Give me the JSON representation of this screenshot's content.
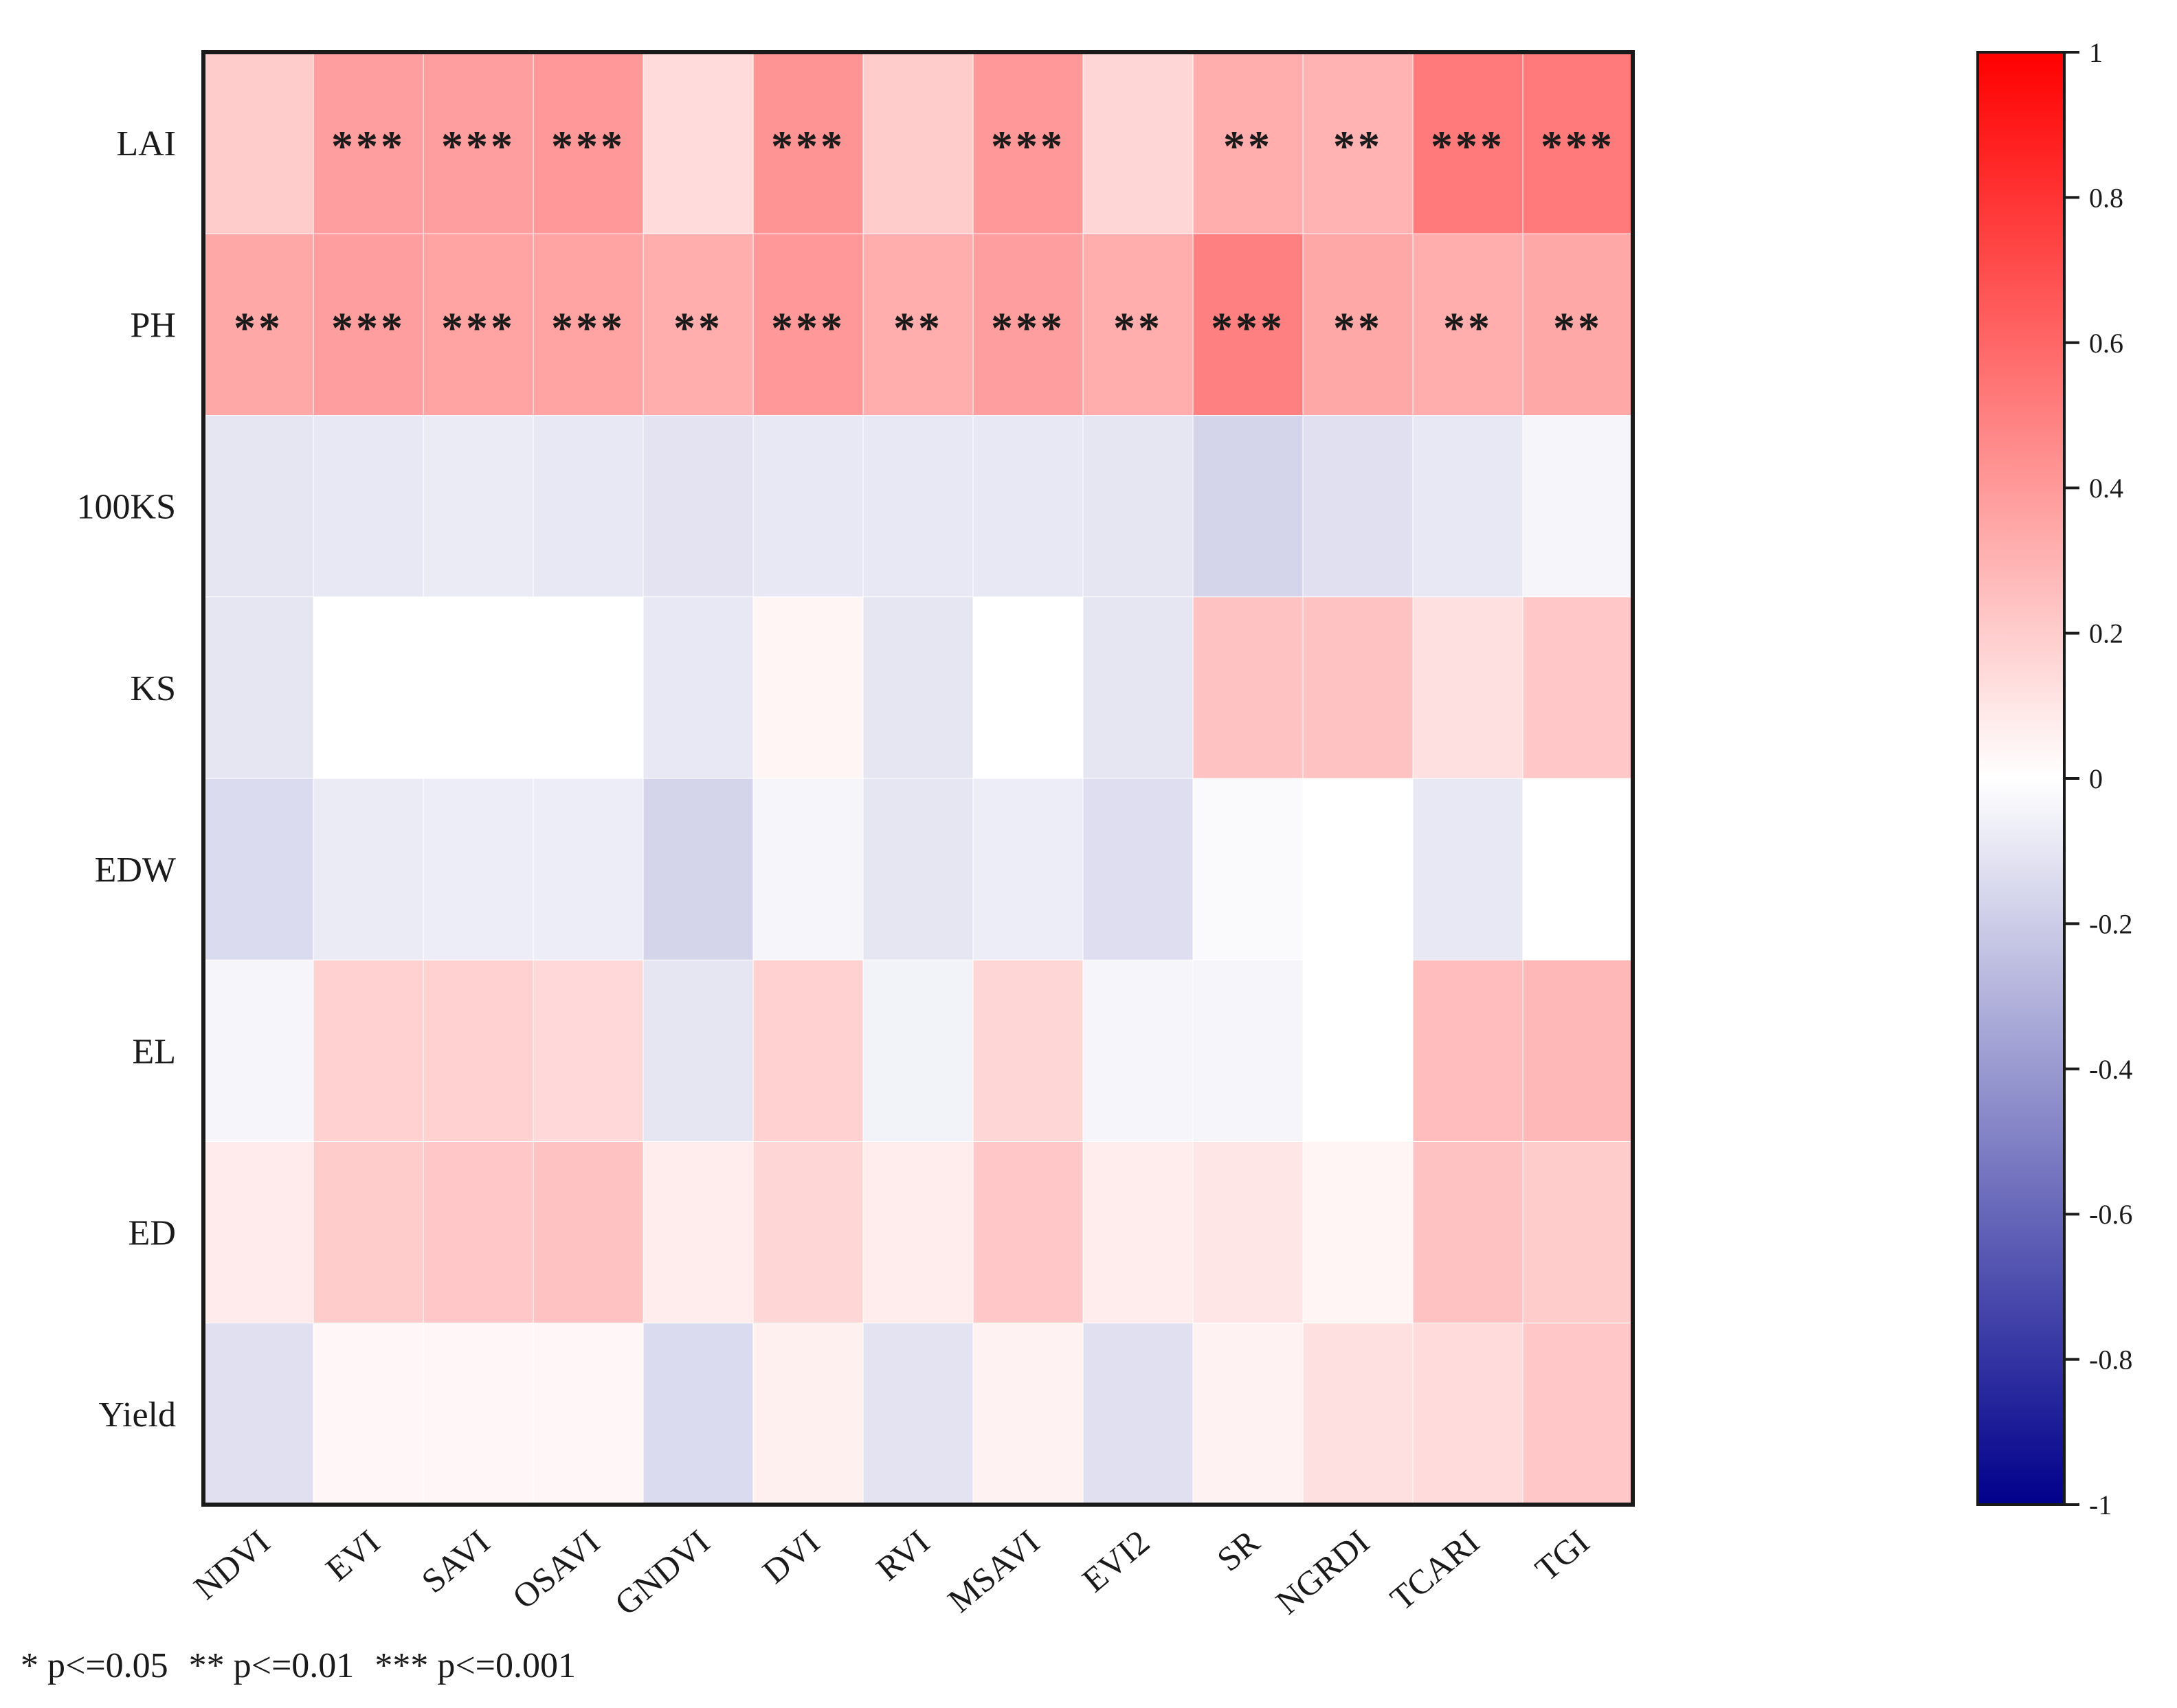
{
  "chart_data": {
    "type": "heatmap",
    "title": "",
    "rows": [
      "LAI",
      "PH",
      "100KS",
      "KS",
      "EDW",
      "EL",
      "ED",
      "Yield"
    ],
    "columns": [
      "NDVI",
      "EVI",
      "SAVI",
      "OSAVI",
      "GNDVI",
      "DVI",
      "RVI",
      "MSAVI",
      "EVI2",
      "SR",
      "NGRDI",
      "TCARI",
      "TGI"
    ],
    "values": [
      [
        0.2,
        0.38,
        0.38,
        0.4,
        0.14,
        0.42,
        0.2,
        0.4,
        0.16,
        0.32,
        0.3,
        0.52,
        0.52
      ],
      [
        0.34,
        0.38,
        0.36,
        0.36,
        0.32,
        0.4,
        0.32,
        0.38,
        0.32,
        0.5,
        0.34,
        0.32,
        0.34
      ],
      [
        -0.1,
        -0.09,
        -0.08,
        -0.09,
        -0.11,
        -0.09,
        -0.09,
        -0.09,
        -0.1,
        -0.17,
        -0.12,
        -0.09,
        -0.04
      ],
      [
        -0.1,
        0.0,
        0.0,
        0.0,
        -0.09,
        0.04,
        -0.1,
        0.0,
        -0.1,
        0.24,
        0.24,
        0.12,
        0.22
      ],
      [
        -0.14,
        -0.08,
        -0.07,
        -0.07,
        -0.17,
        -0.04,
        -0.1,
        -0.07,
        -0.13,
        -0.02,
        0.0,
        -0.09,
        0.0
      ],
      [
        -0.04,
        0.18,
        0.18,
        0.15,
        -0.1,
        0.18,
        -0.05,
        0.16,
        -0.04,
        -0.04,
        0.0,
        0.26,
        0.28
      ],
      [
        0.08,
        0.2,
        0.22,
        0.24,
        0.07,
        0.16,
        0.07,
        0.22,
        0.07,
        0.1,
        0.04,
        0.24,
        0.2
      ],
      [
        -0.12,
        0.03,
        0.03,
        0.03,
        -0.14,
        0.06,
        -0.11,
        0.05,
        -0.12,
        0.05,
        0.12,
        0.14,
        0.22
      ]
    ],
    "significance": [
      [
        "",
        "***",
        "***",
        "***",
        "",
        "***",
        "",
        "***",
        "",
        "**",
        "**",
        "***",
        "***"
      ],
      [
        "**",
        "***",
        "***",
        "***",
        "**",
        "***",
        "**",
        "***",
        "**",
        "***",
        "**",
        "**",
        "**"
      ],
      [
        "",
        "",
        "",
        "",
        "",
        "",
        "",
        "",
        "",
        "",
        "",
        "",
        ""
      ],
      [
        "",
        "",
        "",
        "",
        "",
        "",
        "",
        "",
        "",
        "",
        "",
        "",
        ""
      ],
      [
        "",
        "",
        "",
        "",
        "",
        "",
        "",
        "",
        "",
        "",
        "",
        "",
        ""
      ],
      [
        "",
        "",
        "",
        "",
        "",
        "",
        "",
        "",
        "",
        "",
        "",
        "",
        ""
      ],
      [
        "",
        "",
        "",
        "",
        "",
        "",
        "",
        "",
        "",
        "",
        "",
        "",
        ""
      ],
      [
        "",
        "",
        "",
        "",
        "",
        "",
        "",
        "",
        "",
        "",
        "",
        "",
        ""
      ]
    ],
    "colorbar": {
      "range": [
        -1,
        1
      ],
      "ticks": [
        "1",
        "0.8",
        "0.6",
        "0.4",
        "0.2",
        "0",
        "-0.2",
        "-0.4",
        "-0.6",
        "-0.8",
        "-1"
      ],
      "low_color": "#00008b",
      "mid_color": "#ffffff",
      "high_color": "#ff0000"
    }
  },
  "legend_note": {
    "one_star": "* p<=0.05",
    "two_star": "** p<=0.01",
    "three_star": "*** p<=0.001"
  }
}
